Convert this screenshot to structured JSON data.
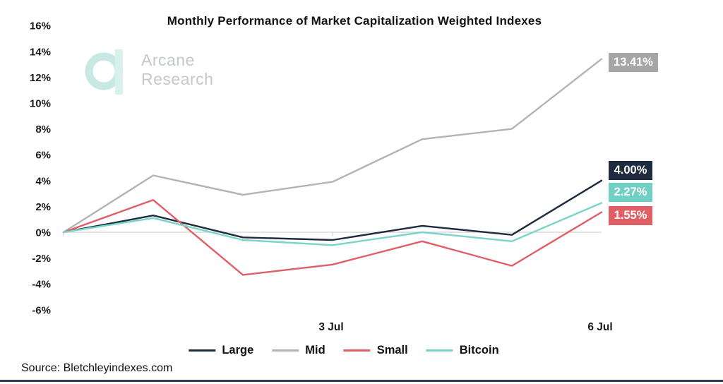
{
  "title": "Monthly Performance of Market Capitalization Weighted Indexes",
  "watermark": {
    "line1": "Arcane",
    "line2": "Research"
  },
  "source": "Source: Bletchleyindexes.com",
  "colors": {
    "large": "#1f2b3e",
    "mid_line": "#b3b3b3",
    "mid_label_bg": "#a6a6a6",
    "small": "#e05f66",
    "bitcoin_line": "#7bd4c8",
    "bitcoin_label_bg": "#72cfc3",
    "zero_gridline": "#d9d9d9",
    "watermark_teal": "#c7e8e3",
    "watermark_text": "#c4c8cc",
    "bottom_rule": "#2e3e55"
  },
  "chart_data": {
    "type": "line",
    "title": "Monthly Performance of Market Capitalization Weighted Indexes",
    "x_point_count": 7,
    "x_ticklabels": [
      {
        "index": 3,
        "label": "3 Jul"
      },
      {
        "index": 6,
        "label": "6 Jul"
      }
    ],
    "yticks": [
      "16%",
      "14%",
      "12%",
      "10%",
      "8%",
      "6%",
      "4%",
      "2%",
      "0%",
      "-2%",
      "-4%",
      "-6%"
    ],
    "ylim": [
      -6,
      16
    ],
    "ytick_step": 2,
    "grid": "horizontal zero line only",
    "legend_position": "bottom-center",
    "series": [
      {
        "name": "Large",
        "color": "#1f2b3e",
        "label_bg": "#1f2b3e",
        "values": [
          0,
          1.3,
          -0.4,
          -0.6,
          0.5,
          -0.2,
          4.0
        ],
        "end_label": "4.00%"
      },
      {
        "name": "Mid",
        "color": "#b3b3b3",
        "label_bg": "#a6a6a6",
        "values": [
          0,
          4.4,
          2.9,
          3.9,
          7.2,
          8.0,
          13.41
        ],
        "end_label": "13.41%"
      },
      {
        "name": "Small",
        "color": "#e05f66",
        "label_bg": "#e05f66",
        "values": [
          0,
          2.5,
          -3.3,
          -2.5,
          -0.7,
          -2.6,
          1.55
        ],
        "end_label": "1.55%"
      },
      {
        "name": "Bitcoin",
        "color": "#7bd4c8",
        "label_bg": "#72cfc3",
        "values": [
          0,
          1.1,
          -0.6,
          -1.0,
          0.0,
          -0.7,
          2.27
        ],
        "end_label": "2.27%"
      }
    ]
  }
}
